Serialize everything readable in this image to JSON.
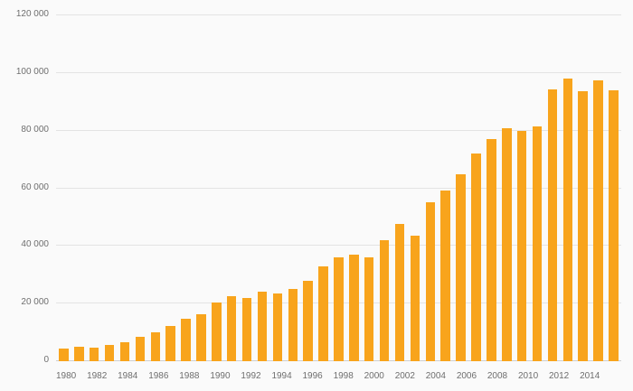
{
  "chart": {
    "background": "#FAFAFA",
    "grid_color": "#E3E3E3",
    "baseline_color": "#CFCFCF",
    "axis_label_color": "#6E6E6E",
    "bar_color": "#F8A41C"
  },
  "chart_data": {
    "type": "bar",
    "title": "",
    "xlabel": "",
    "ylabel": "",
    "legend": "none",
    "grid": "horizontal",
    "ylim": [
      0,
      120000
    ],
    "categories": [
      "1980",
      "1981",
      "1982",
      "1983",
      "1984",
      "1985",
      "1986",
      "1987",
      "1988",
      "1989",
      "1990",
      "1991",
      "1992",
      "1993",
      "1994",
      "1995",
      "1996",
      "1997",
      "1998",
      "1999",
      "2000",
      "2001",
      "2002",
      "2003",
      "2004",
      "2005",
      "2006",
      "2007",
      "2008",
      "2009",
      "2010",
      "2011",
      "2012",
      "2013",
      "2014",
      "2015",
      "2016"
    ],
    "values": [
      4500,
      5000,
      4800,
      5500,
      6500,
      8600,
      10000,
      12100,
      14600,
      16400,
      20300,
      22500,
      21800,
      24000,
      23400,
      25000,
      28000,
      33000,
      36000,
      37100,
      36100,
      41900,
      47500,
      43400,
      55000,
      59100,
      65000,
      72000,
      77200,
      80700,
      79900,
      81500,
      94300,
      98100,
      93700,
      97500,
      94000
    ],
    "yticks": [
      {
        "value": 0,
        "label": "0"
      },
      {
        "value": 20000,
        "label": "20 000"
      },
      {
        "value": 40000,
        "label": "40 000"
      },
      {
        "value": 60000,
        "label": "60 000"
      },
      {
        "value": 80000,
        "label": "80 000"
      },
      {
        "value": 100000,
        "label": "100 000"
      },
      {
        "value": 120000,
        "label": "120 000"
      }
    ],
    "xticks": [
      {
        "index": 0,
        "label": "1980"
      },
      {
        "index": 2,
        "label": "1982"
      },
      {
        "index": 4,
        "label": "1984"
      },
      {
        "index": 6,
        "label": "1986"
      },
      {
        "index": 8,
        "label": "1988"
      },
      {
        "index": 10,
        "label": "1990"
      },
      {
        "index": 12,
        "label": "1992"
      },
      {
        "index": 14,
        "label": "1994"
      },
      {
        "index": 16,
        "label": "1996"
      },
      {
        "index": 18,
        "label": "1998"
      },
      {
        "index": 20,
        "label": "2000"
      },
      {
        "index": 22,
        "label": "2002"
      },
      {
        "index": 24,
        "label": "2004"
      },
      {
        "index": 26,
        "label": "2006"
      },
      {
        "index": 28,
        "label": "2008"
      },
      {
        "index": 30,
        "label": "2010"
      },
      {
        "index": 32,
        "label": "2012"
      },
      {
        "index": 34,
        "label": "2014"
      }
    ]
  }
}
